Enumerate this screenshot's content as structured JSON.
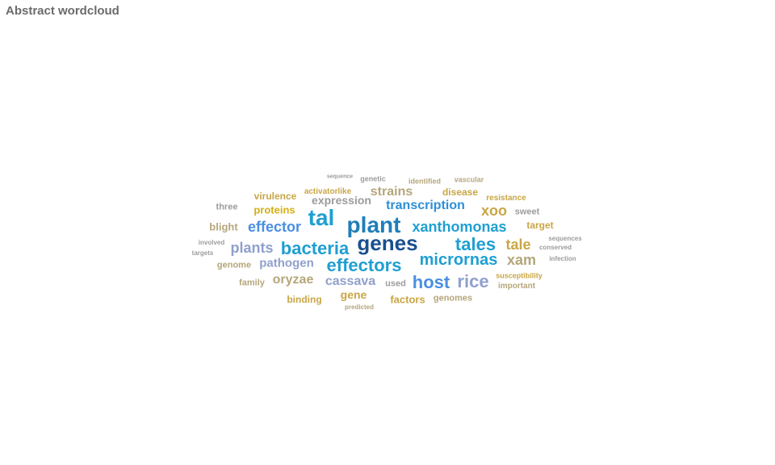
{
  "title": "Abstract wordcloud",
  "words": [
    {
      "text": "sequence",
      "color": "#9c9c9c"
    },
    {
      "text": "genetic",
      "color": "#9c9c9c"
    },
    {
      "text": "identified",
      "color": "#b5a67b"
    },
    {
      "text": "vascular",
      "color": "#b5a67b"
    },
    {
      "text": "strains",
      "color": "#b5a67b"
    },
    {
      "text": "activatorlike",
      "color": "#c9a645"
    },
    {
      "text": "disease",
      "color": "#c9a645"
    },
    {
      "text": "virulence",
      "color": "#c9a645"
    },
    {
      "text": "expression",
      "color": "#9c9c9c"
    },
    {
      "text": "resistance",
      "color": "#c9a645"
    },
    {
      "text": "three",
      "color": "#9c9c9c"
    },
    {
      "text": "proteins",
      "color": "#d4ae14"
    },
    {
      "text": "transcription",
      "color": "#2e8fd6"
    },
    {
      "text": "xoo",
      "color": "#c9a645"
    },
    {
      "text": "sweet",
      "color": "#9c9c9c"
    },
    {
      "text": "tal",
      "color": "#1f9fd1"
    },
    {
      "text": "blight",
      "color": "#b5a67b"
    },
    {
      "text": "effector",
      "color": "#4a8fe0"
    },
    {
      "text": "plant",
      "color": "#1f7fb8"
    },
    {
      "text": "xanthomonas",
      "color": "#1f9fd1"
    },
    {
      "text": "target",
      "color": "#c9a645"
    },
    {
      "text": "involved",
      "color": "#9c9c9c"
    },
    {
      "text": "sequences",
      "color": "#9c9c9c"
    },
    {
      "text": "genes",
      "color": "#1a4f8f"
    },
    {
      "text": "plants",
      "color": "#8fa0cc"
    },
    {
      "text": "bacteria",
      "color": "#1f9fd1"
    },
    {
      "text": "tales",
      "color": "#1f9fd1"
    },
    {
      "text": "tale",
      "color": "#c9a645"
    },
    {
      "text": "conserved",
      "color": "#9c9c9c"
    },
    {
      "text": "targets",
      "color": "#9c9c9c"
    },
    {
      "text": "infection",
      "color": "#9c9c9c"
    },
    {
      "text": "genome",
      "color": "#b5a67b"
    },
    {
      "text": "pathogen",
      "color": "#8fa0cc"
    },
    {
      "text": "effectors",
      "color": "#1f9fd1"
    },
    {
      "text": "micrornas",
      "color": "#1f9fd1"
    },
    {
      "text": "xam",
      "color": "#b5a67b"
    },
    {
      "text": "family",
      "color": "#b5a67b"
    },
    {
      "text": "oryzae",
      "color": "#b5a67b"
    },
    {
      "text": "cassava",
      "color": "#8fa0cc"
    },
    {
      "text": "used",
      "color": "#9c9c9c"
    },
    {
      "text": "host",
      "color": "#4a8fe0"
    },
    {
      "text": "rice",
      "color": "#8fa0cc"
    },
    {
      "text": "susceptibility",
      "color": "#c9a645"
    },
    {
      "text": "important",
      "color": "#b5a67b"
    },
    {
      "text": "gene",
      "color": "#c9a645"
    },
    {
      "text": "binding",
      "color": "#c9a645"
    },
    {
      "text": "factors",
      "color": "#c9a645"
    },
    {
      "text": "genomes",
      "color": "#b5a67b"
    },
    {
      "text": "predicted",
      "color": "#b5a67b"
    }
  ]
}
